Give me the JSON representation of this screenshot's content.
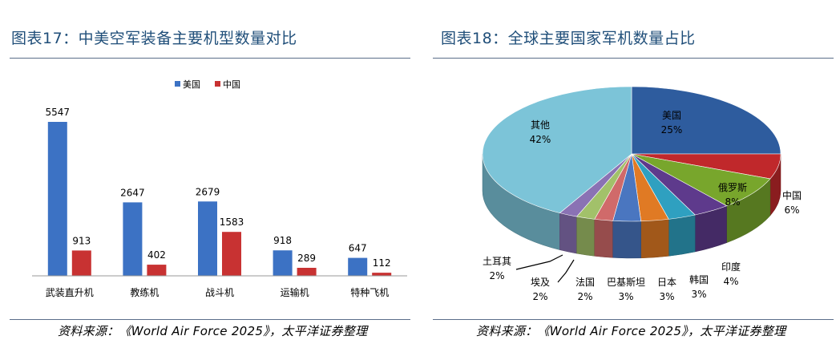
{
  "colors": {
    "usa": "#3c72c4",
    "china": "#c83232",
    "title": "#1f4e79"
  },
  "left": {
    "title": "图表17：中美空军装备主要机型数量对比",
    "source": "资料来源：《World Air Force 2025》，太平洋证券整理"
  },
  "right": {
    "title": "图表18：全球主要国家军机数量占比",
    "source": "资料来源：《World Air Force 2025》，太平洋证券整理"
  },
  "chart_data": [
    {
      "type": "bar",
      "title": "中美空军装备主要机型数量对比",
      "categories": [
        "武装直升机",
        "教练机",
        "战斗机",
        "运输机",
        "特种飞机"
      ],
      "series": [
        {
          "name": "美国",
          "values": [
            5547,
            2647,
            2679,
            918,
            647
          ],
          "color": "#3c72c4"
        },
        {
          "name": "中国",
          "values": [
            913,
            402,
            1583,
            289,
            112
          ],
          "color": "#c83232"
        }
      ],
      "ylim": [
        0,
        6000
      ],
      "legend": "top"
    },
    {
      "type": "pie",
      "title": "全球主要国家军机数量占比",
      "slices": [
        {
          "label": "美国",
          "value": 25,
          "pct": "25%",
          "color": "#2e5c9e"
        },
        {
          "label": "中国",
          "value": 6,
          "pct": "6%",
          "color": "#c0282b"
        },
        {
          "label": "俄罗斯",
          "value": 8,
          "pct": "8%",
          "color": "#78a62c"
        },
        {
          "label": "印度",
          "value": 4,
          "pct": "4%",
          "color": "#5e3a8c"
        },
        {
          "label": "韩国",
          "value": 3,
          "pct": "3%",
          "color": "#2fa0c0"
        },
        {
          "label": "日本",
          "value": 3,
          "pct": "3%",
          "color": "#e07a24"
        },
        {
          "label": "巴基斯坦",
          "value": 3,
          "pct": "3%",
          "color": "#4a76c0"
        },
        {
          "label": "法国",
          "value": 2,
          "pct": "2%",
          "color": "#d06a6a"
        },
        {
          "label": "埃及",
          "value": 2,
          "pct": "2%",
          "color": "#a2c16a"
        },
        {
          "label": "土耳其",
          "value": 2,
          "pct": "2%",
          "color": "#8a72b4"
        },
        {
          "label": "其他",
          "value": 42,
          "pct": "42%",
          "color": "#7cc4d8"
        }
      ]
    }
  ]
}
